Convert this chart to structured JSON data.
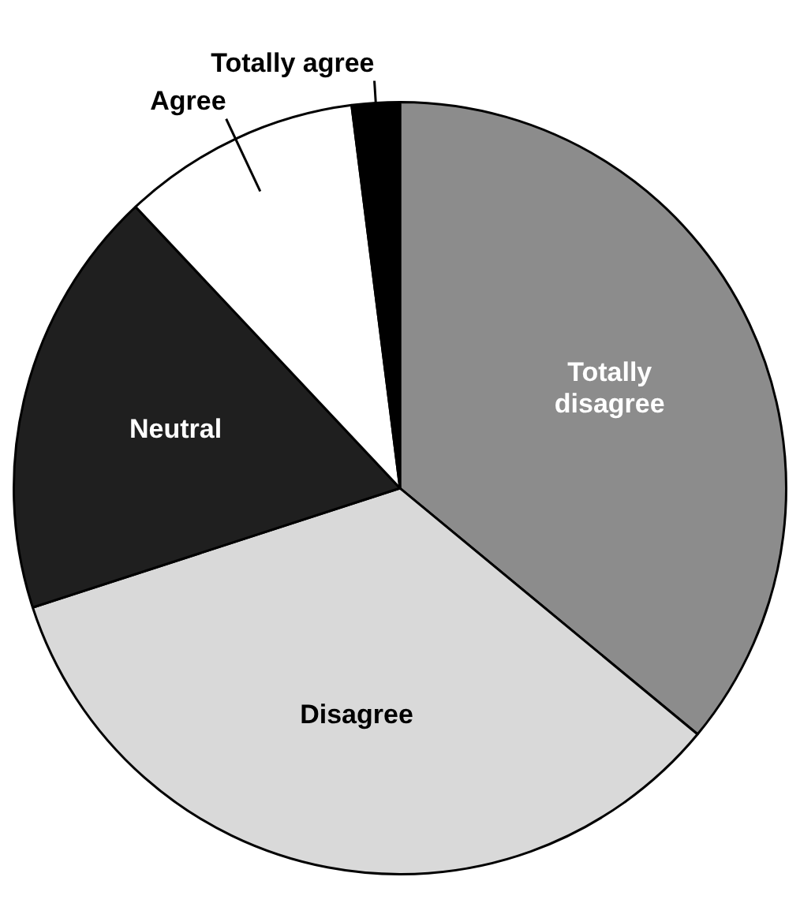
{
  "chart_data": {
    "type": "pie",
    "categories": [
      "Totally disagree",
      "Disagree",
      "Neutral",
      "Agree",
      "Totally agree"
    ],
    "values": [
      36,
      34,
      18,
      10,
      2
    ],
    "colors": [
      "#8c8c8c",
      "#d9d9d9",
      "#1f1f1f",
      "#ffffff",
      "#000000"
    ],
    "legend": false
  }
}
